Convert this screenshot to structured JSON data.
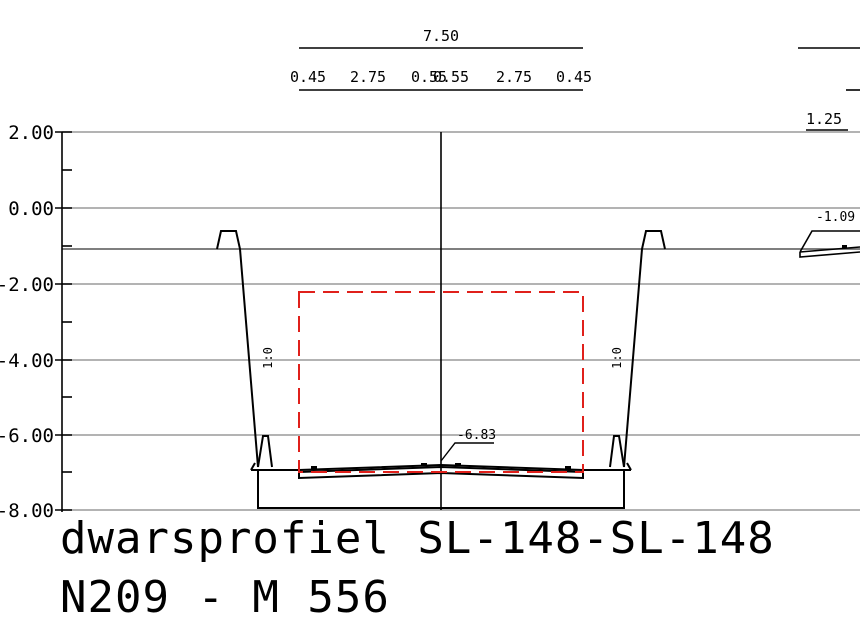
{
  "y_axis": {
    "ticks": [
      "2.00",
      "0.00",
      "-2.00",
      "-4.00",
      "-6.00",
      "-8.00"
    ]
  },
  "dimensions": {
    "total_width": "7.50",
    "segments": [
      "0.45",
      "2.75",
      "0.55",
      "0.55",
      "2.75",
      "0.45"
    ],
    "right_width": "1.25"
  },
  "levels": {
    "bottom_center": "-6.83",
    "right_road": "-1.09"
  },
  "slope_label": "1:0",
  "title": {
    "line1": "dwarsprofiel SL-148-SL-148",
    "line2": "N209 - M 556"
  },
  "colors": {
    "lines": "#000000",
    "grid": "#9a9a9a",
    "clearance_box": "#e0201b"
  }
}
